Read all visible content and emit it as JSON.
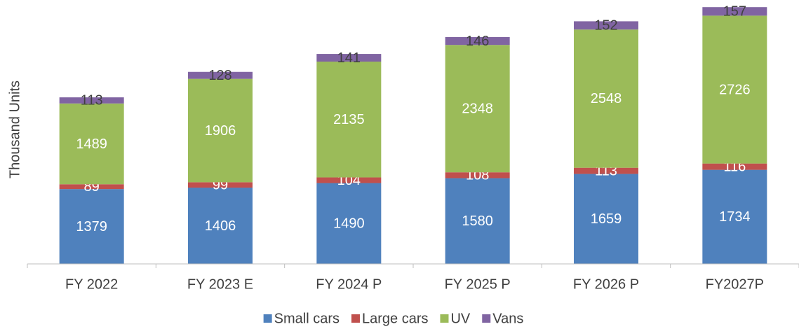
{
  "chart_data": {
    "type": "stacked_bar",
    "y_label": "Thousand Units",
    "categories": [
      "FY 2022",
      "FY 2023 E",
      "FY 2024 P",
      "FY 2025 P",
      "FY 2026 P",
      "FY2027P"
    ],
    "series": [
      {
        "name": "Small cars",
        "color": "#4f81bd",
        "label_color": "#ffffff",
        "values": [
          1379,
          1406,
          1490,
          1580,
          1659,
          1734
        ]
      },
      {
        "name": "Large cars",
        "color": "#c0504d",
        "label_color": "#ffffff",
        "values": [
          89,
          99,
          104,
          108,
          113,
          116
        ]
      },
      {
        "name": "UV",
        "color": "#9bbb59",
        "label_color": "#ffffff",
        "values": [
          1489,
          1906,
          2135,
          2348,
          2548,
          2726
        ]
      },
      {
        "name": "Vans",
        "color": "#8064a2",
        "label_color": "#404040",
        "values": [
          113,
          128,
          141,
          146,
          152,
          157
        ]
      }
    ],
    "ylim": [
      0,
      4800
    ],
    "legend": "bottom"
  }
}
